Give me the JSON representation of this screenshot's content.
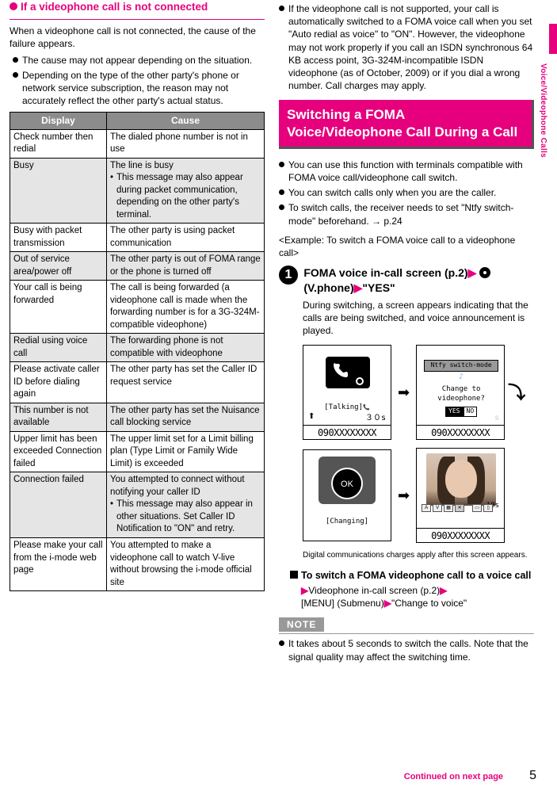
{
  "sidebar_label": "Voice/Videophone Calls",
  "left": {
    "section_title": "If a videophone call is not connected",
    "intro": "When a videophone call is not connected, the cause of the failure appears.",
    "bullets": [
      "The cause may not appear depending on the situation.",
      "Depending on the type of the other party's phone or network service subscription, the reason may not accurately reflect the other party's actual status."
    ],
    "table": {
      "headers": [
        "Display",
        "Cause"
      ],
      "rows": [
        {
          "shade": false,
          "display": "Check number then redial",
          "cause": "The dialed phone number is not in use"
        },
        {
          "shade": true,
          "display": "Busy",
          "cause_main": "The line is busy",
          "cause_sub": "This message may also appear during packet communication, depending on the other party's terminal."
        },
        {
          "shade": false,
          "display": "Busy with packet transmission",
          "cause": "The other party is using packet communication"
        },
        {
          "shade": true,
          "display": "Out of service area/power off",
          "cause": "The other party is out of FOMA range or the phone is turned off"
        },
        {
          "shade": false,
          "display": "Your call is being forwarded",
          "cause": "The call is being forwarded (a videophone call is made when the forwarding number is for a 3G-324M-compatible videophone)"
        },
        {
          "shade": true,
          "display": "Redial using voice call",
          "cause": "The forwarding phone is not compatible with videophone"
        },
        {
          "shade": false,
          "display": "Please activate caller ID before dialing again",
          "cause": "The other party has set the Caller ID request service"
        },
        {
          "shade": true,
          "display": "This number is not available",
          "cause": "The other party has set the Nuisance call blocking service"
        },
        {
          "shade": false,
          "display": "Upper limit has been exceeded Connection failed",
          "cause": "The upper limit set for a Limit billing plan (Type Limit or Family Wide Limit) is exceeded"
        },
        {
          "shade": true,
          "display": "Connection failed",
          "cause_main": "You attempted to connect without notifying your caller ID",
          "cause_sub": "This message may also appear in other situations. Set Caller ID Notification to \"ON\" and retry."
        },
        {
          "shade": false,
          "display": "Please make your call from the\ni-mode web page",
          "cause": "You attempted to make a videophone call to watch V-live without browsing the i-mode official site"
        }
      ]
    }
  },
  "right": {
    "top_bullet": "If the videophone call is not supported, your call is automatically switched to a FOMA voice call when you set \"Auto redial as voice\" to \"ON\". However, the videophone may not work properly if you call an ISDN synchronous 64 KB access point, 3G-324M-incompatible ISDN videophone (as of October, 2009) or if you dial a wrong number. Call charges may apply.",
    "pink_title": "Switching a FOMA Voice/Videophone Call During a Call",
    "pink_bullets": [
      "You can use this function with terminals compatible with FOMA voice call/videophone call switch.",
      "You can switch calls only when you are the caller.",
      "To switch calls, the receiver needs to set \"Ntfy switch-mode\" beforehand. → p.24"
    ],
    "example_intro": "<Example: To switch a FOMA voice call to a videophone call>",
    "step_title_a": "FOMA voice in-call screen (p.2)",
    "step_title_b": " (V.phone)",
    "step_title_c": "\"YES\"",
    "step_body": "During switching, a screen appears indicating that the calls are being switched, and voice announcement is played.",
    "screens": {
      "talking_label": "[Talking]",
      "secs30": "３０s",
      "number": "090XXXXXXXX",
      "dialog_title": "Ntfy switch-mode",
      "dialog_body1": "Change to",
      "dialog_body2": "videophone?",
      "yes": "YES",
      "no": "NO",
      "ghost_s": "s",
      "ok": "OK",
      "changing": "[Changing]",
      "sec10": "10s"
    },
    "caption": "Digital communications charges apply after this screen appears.",
    "sq_title": "To switch a FOMA videophone call to a voice call",
    "sub_step_a": "Videophone in-call screen (p.2)",
    "sub_step_b": "[MENU] (Submenu)",
    "sub_step_c": "\"Change to voice\"",
    "note": "It takes about 5 seconds to switch the calls. Note that the signal quality may affect the switching time."
  },
  "footer": {
    "continued": "Continued on next page",
    "page": "5"
  }
}
